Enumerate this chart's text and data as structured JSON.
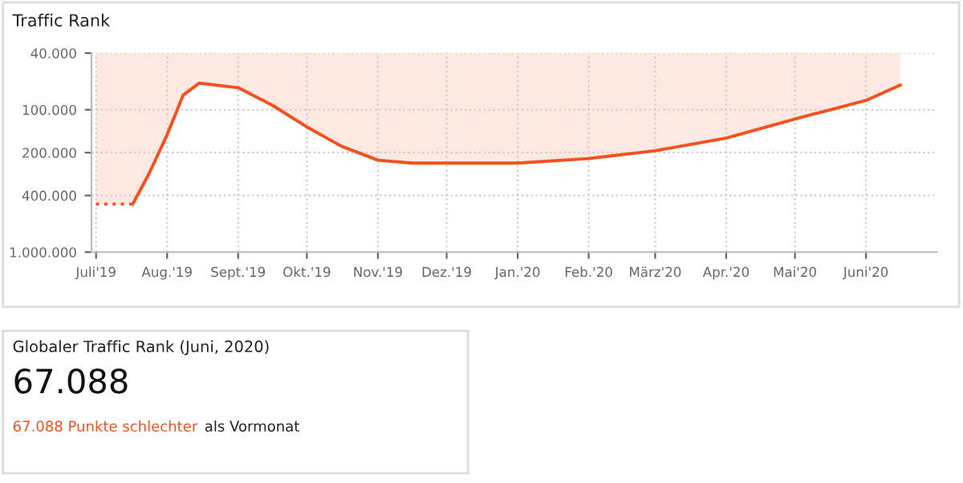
{
  "chart_data": [
    {
      "type": "area",
      "title": "Traffic Rank",
      "log": "y",
      "grid": true,
      "series": [
        {
          "color": "#f4511e",
          "line_style": "dotted",
          "x": [
            "2019-07-01",
            "2019-07-17"
          ],
          "values": [
            460000,
            460000
          ]
        },
        {
          "color": "#f4511e",
          "line_style": "solid",
          "x": [
            "2019-07-17",
            "2019-07-24",
            "2019-08-01",
            "2019-08-08",
            "2019-08-15",
            "2019-09-01",
            "2019-09-16",
            "2019-10-01",
            "2019-10-16",
            "2019-11-01",
            "2019-11-16",
            "2020-01-01",
            "2020-02-01",
            "2020-03-01",
            "2020-04-01",
            "2020-05-01",
            "2020-06-01",
            "2020-06-16"
          ],
          "values": [
            460000,
            284000,
            150000,
            79000,
            65000,
            70000,
            93000,
            132000,
            180000,
            226000,
            237000,
            237000,
            220000,
            194000,
            158000,
            116000,
            86000,
            67088
          ]
        }
      ],
      "xlim": [
        "2019-06-29",
        "2020-07-02"
      ],
      "xticks": [
        {
          "value": "2019-07-01",
          "label": "Juli'19"
        },
        {
          "value": "2019-08-01",
          "label": "Aug.'19"
        },
        {
          "value": "2019-09-01",
          "label": "Sept.'19"
        },
        {
          "value": "2019-10-01",
          "label": "Okt.'19"
        },
        {
          "value": "2019-11-01",
          "label": "Nov.'19"
        },
        {
          "value": "2019-12-01",
          "label": "Dez.'19"
        },
        {
          "value": "2020-01-01",
          "label": "Jan.'20"
        },
        {
          "value": "2020-02-01",
          "label": "Feb.'20"
        },
        {
          "value": "2020-03-01",
          "label": "März'20"
        },
        {
          "value": "2020-04-01",
          "label": "Apr.'20"
        },
        {
          "value": "2020-05-01",
          "label": "Mai'20"
        },
        {
          "value": "2020-06-01",
          "label": "Juni'20"
        }
      ],
      "ylim": [
        1000000,
        40000
      ],
      "yticks": [
        {
          "value": 40000,
          "label": "40.000"
        },
        {
          "value": 100000,
          "label": "100.000"
        },
        {
          "value": 200000,
          "label": "200.000"
        },
        {
          "value": 400000,
          "label": "400.000"
        },
        {
          "value": 1000000,
          "label": "1.000.000"
        }
      ]
    },
    {
      "type": "other",
      "title": "Globaler Traffic Rank (Juni, 2020)",
      "subtitle": "67.088",
      "annotations": [
        "67.088 Punkte schlechter",
        "als Vormonat"
      ],
      "colors": [
        "#f4511e",
        "#222222"
      ]
    }
  ]
}
